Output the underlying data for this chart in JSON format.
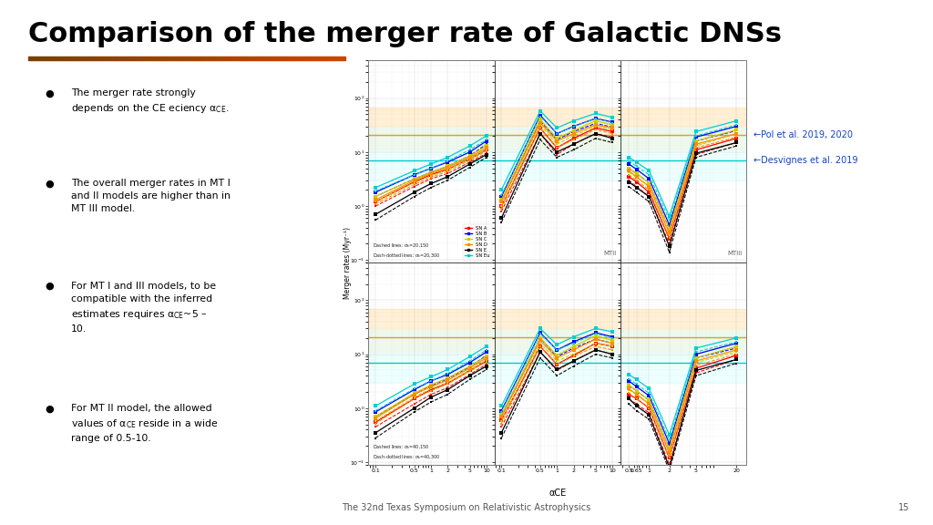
{
  "title": "Comparison of the merger rate of Galactic DNSs",
  "title_fontsize": 22,
  "title_fontweight": "bold",
  "footer": "The 32nd Texas Symposium on Relativistic Astrophysics",
  "footer_page": "15",
  "accent_line_color1": "#7B3F00",
  "accent_line_color2": "#CC4400",
  "xlabel": "αCE",
  "ylabel": "Merger rates (Myr⁻¹)",
  "pol_band_color": "#FFE4B5",
  "pol_line_color": "#DAA520",
  "desvignes_line_color": "#00CED1",
  "desvignes_band_color": "#E0FFFF",
  "pol_value": 21,
  "pol_low": 11,
  "pol_high": 68,
  "desvignes_value": 7,
  "desvignes_low": 3,
  "desvignes_high": 28,
  "series_colors": [
    "#FF0000",
    "#0000FF",
    "#CCCC00",
    "#FF8C00",
    "#000000",
    "#00CED1"
  ],
  "series_labels": [
    "SN A",
    "SN B",
    "SN C",
    "SN D",
    "SN E",
    "SN Eu"
  ],
  "top_label1": "←Pol et al. 2019, 2020",
  "top_label2": "←Desvignes et al. 2019",
  "background_color": "#FFFFFF",
  "x_top": [
    0.1,
    0.5,
    1,
    2,
    5,
    10
  ],
  "x_iii": [
    0.5,
    0.65,
    1,
    2,
    5,
    20
  ],
  "ylim": [
    0.09,
    500
  ],
  "mti_top_solid": [
    [
      1.2,
      2.8,
      3.8,
      4.8,
      7.5,
      11
    ],
    [
      1.8,
      3.8,
      5.0,
      6.5,
      10,
      16
    ],
    [
      1.5,
      3.2,
      4.2,
      5.5,
      8.5,
      13
    ],
    [
      1.3,
      3.0,
      4.0,
      5.2,
      8.0,
      12
    ],
    [
      0.7,
      1.8,
      2.6,
      3.5,
      6.0,
      9
    ],
    [
      2.2,
      4.5,
      6.0,
      8.0,
      13,
      20
    ]
  ],
  "mti_top_dashed": [
    [
      1.0,
      2.3,
      3.2,
      4.0,
      6.5,
      9.5
    ],
    [
      1.5,
      3.2,
      4.2,
      5.5,
      8.5,
      14
    ],
    [
      1.2,
      2.7,
      3.6,
      4.7,
      7.5,
      11
    ],
    [
      1.1,
      2.5,
      3.4,
      4.4,
      7.0,
      10.5
    ],
    [
      0.55,
      1.5,
      2.2,
      3.0,
      5.2,
      8.0
    ],
    [
      1.9,
      3.8,
      5.0,
      6.8,
      11,
      17
    ]
  ],
  "mtii_top_solid": [
    [
      1.0,
      28,
      12,
      18,
      28,
      24
    ],
    [
      1.5,
      48,
      22,
      30,
      42,
      36
    ],
    [
      1.3,
      40,
      18,
      25,
      38,
      32
    ],
    [
      1.2,
      35,
      16,
      22,
      32,
      28
    ],
    [
      0.6,
      22,
      10,
      14,
      22,
      18
    ],
    [
      2.0,
      58,
      28,
      38,
      52,
      44
    ]
  ],
  "mtii_top_dashed": [
    [
      0.8,
      22,
      9,
      14,
      22,
      19
    ],
    [
      1.2,
      38,
      17,
      24,
      34,
      29
    ],
    [
      1.0,
      32,
      14,
      20,
      30,
      26
    ],
    [
      0.9,
      28,
      12,
      17,
      26,
      22
    ],
    [
      0.5,
      17,
      8,
      11,
      18,
      15
    ],
    [
      1.6,
      46,
      22,
      30,
      42,
      35
    ]
  ],
  "mtiii_top_solid": [
    [
      3.5,
      2.8,
      1.8,
      0.25,
      11,
      18
    ],
    [
      6.0,
      4.8,
      3.2,
      0.45,
      19,
      30
    ],
    [
      5.0,
      4.0,
      2.7,
      0.38,
      16,
      26
    ],
    [
      4.5,
      3.5,
      2.3,
      0.32,
      14,
      22
    ],
    [
      2.8,
      2.2,
      1.5,
      0.18,
      9.5,
      15
    ],
    [
      8.0,
      6.5,
      4.5,
      0.65,
      24,
      38
    ]
  ],
  "mtiii_top_dashed": [
    [
      3.0,
      2.3,
      1.5,
      0.2,
      9.0,
      15
    ],
    [
      5.0,
      4.0,
      2.7,
      0.38,
      16,
      25
    ],
    [
      4.2,
      3.4,
      2.3,
      0.3,
      13,
      22
    ],
    [
      3.8,
      3.0,
      2.0,
      0.26,
      12,
      19
    ],
    [
      2.3,
      1.8,
      1.2,
      0.14,
      8.0,
      13
    ],
    [
      6.8,
      5.5,
      3.8,
      0.55,
      20,
      32
    ]
  ],
  "mti_bot_solid": [
    [
      0.55,
      1.5,
      2.2,
      2.9,
      5.0,
      7.5
    ],
    [
      0.85,
      2.2,
      3.2,
      4.2,
      7.0,
      11
    ],
    [
      0.7,
      1.9,
      2.7,
      3.6,
      6.0,
      9.0
    ],
    [
      0.65,
      1.8,
      2.5,
      3.3,
      5.5,
      8.5
    ],
    [
      0.35,
      1.0,
      1.6,
      2.2,
      4.0,
      6.0
    ],
    [
      1.1,
      2.8,
      3.8,
      5.2,
      9.0,
      14
    ]
  ],
  "mti_bot_dashed": [
    [
      0.45,
      1.2,
      1.8,
      2.4,
      4.2,
      6.5
    ],
    [
      0.7,
      1.8,
      2.6,
      3.5,
      5.8,
      9.5
    ],
    [
      0.58,
      1.6,
      2.3,
      3.0,
      5.0,
      7.8
    ],
    [
      0.52,
      1.5,
      2.1,
      2.8,
      4.8,
      7.2
    ],
    [
      0.28,
      0.85,
      1.3,
      1.8,
      3.4,
      5.2
    ],
    [
      0.9,
      2.3,
      3.2,
      4.4,
      7.5,
      12
    ]
  ],
  "mtii_bot_solid": [
    [
      0.6,
      14,
      6.5,
      9.5,
      16,
      14
    ],
    [
      0.9,
      25,
      12,
      17,
      25,
      21
    ],
    [
      0.75,
      20,
      9.5,
      14,
      22,
      18
    ],
    [
      0.7,
      18,
      8.5,
      12,
      19,
      16
    ],
    [
      0.35,
      11,
      5.2,
      7.5,
      12,
      10
    ],
    [
      1.1,
      30,
      15,
      21,
      30,
      26
    ]
  ],
  "mtii_bot_dashed": [
    [
      0.45,
      11,
      5.0,
      7.5,
      12,
      10
    ],
    [
      0.7,
      20,
      9.0,
      13,
      19,
      16
    ],
    [
      0.58,
      16,
      7.5,
      10,
      16,
      14
    ],
    [
      0.52,
      14,
      6.5,
      9.0,
      14,
      12
    ],
    [
      0.28,
      8.5,
      4.0,
      6.0,
      10,
      8.5
    ],
    [
      0.85,
      24,
      12,
      16,
      24,
      20
    ]
  ],
  "mtiii_bot_solid": [
    [
      1.8,
      1.5,
      1.0,
      0.12,
      5.5,
      9.5
    ],
    [
      3.2,
      2.5,
      1.7,
      0.22,
      10,
      16
    ],
    [
      2.7,
      2.1,
      1.4,
      0.18,
      8.5,
      14
    ],
    [
      2.3,
      1.8,
      1.2,
      0.15,
      7.5,
      12
    ],
    [
      1.5,
      1.1,
      0.75,
      0.08,
      5.0,
      8.0
    ],
    [
      4.2,
      3.4,
      2.3,
      0.32,
      13,
      20
    ]
  ],
  "mtiii_bot_dashed": [
    [
      1.5,
      1.2,
      0.82,
      0.09,
      4.5,
      8.0
    ],
    [
      2.6,
      2.1,
      1.4,
      0.18,
      8.5,
      13
    ],
    [
      2.2,
      1.8,
      1.2,
      0.15,
      7.0,
      11
    ],
    [
      1.9,
      1.5,
      1.0,
      0.12,
      6.2,
      10
    ],
    [
      1.2,
      0.9,
      0.62,
      0.07,
      4.0,
      6.8
    ],
    [
      3.5,
      2.8,
      1.9,
      0.26,
      11,
      17
    ]
  ]
}
